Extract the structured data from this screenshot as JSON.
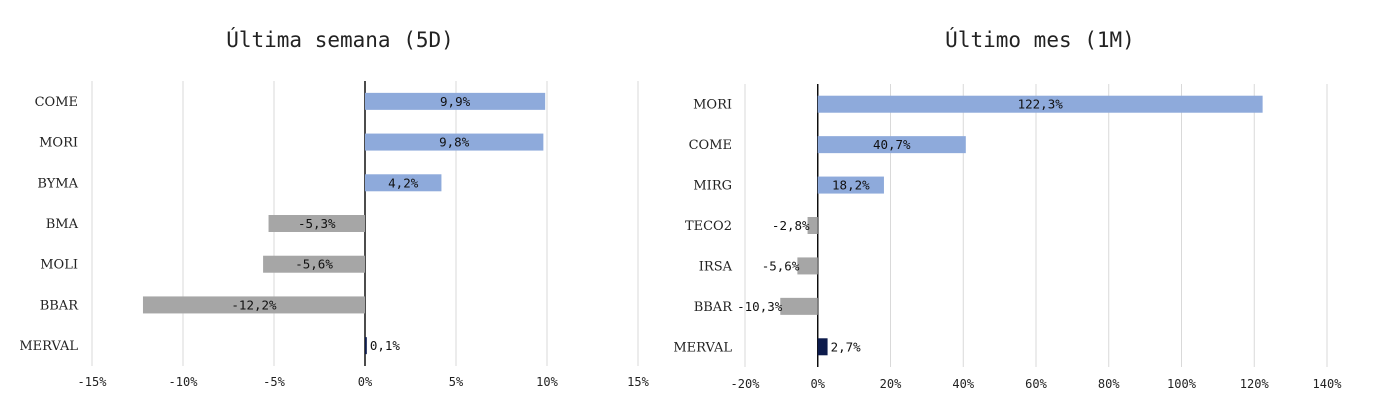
{
  "chart_data": [
    {
      "type": "bar",
      "orientation": "horizontal",
      "title": "Última semana (5D)",
      "categories": [
        "COME",
        "MORI",
        "BYMA",
        "BMA",
        "MOLI",
        "BBAR",
        "MERVAL"
      ],
      "values": [
        9.9,
        9.8,
        4.2,
        -5.3,
        -5.6,
        -12.2,
        0.1
      ],
      "value_labels": [
        "9,9%",
        "9,8%",
        "4,2%",
        "-5,3%",
        "-5,6%",
        "-12,2%",
        "0,1%"
      ],
      "xlim": [
        -15,
        15
      ],
      "x_ticks": [
        -15,
        -10,
        -5,
        0,
        5,
        10,
        15
      ],
      "x_tick_labels": [
        "-15%",
        "-10%",
        "-5%",
        "0%",
        "5%",
        "10%",
        "15%"
      ],
      "grid": true,
      "colors": {
        "positive": "#8eaadb",
        "negative": "#a6a6a6",
        "index": "#0d1b4c"
      }
    },
    {
      "type": "bar",
      "orientation": "horizontal",
      "title": "Último mes (1M)",
      "categories": [
        "MORI",
        "COME",
        "MIRG",
        "TECO2",
        "IRSA",
        "BBAR",
        "MERVAL"
      ],
      "values": [
        122.3,
        40.7,
        18.2,
        -2.8,
        -5.6,
        -10.3,
        2.7
      ],
      "value_labels": [
        "122,3%",
        "40,7%",
        "18,2%",
        "-2,8%",
        "-5,6%",
        "-10,3%",
        "2,7%"
      ],
      "xlim": [
        -20,
        140
      ],
      "x_ticks": [
        -20,
        0,
        20,
        40,
        60,
        80,
        100,
        120,
        140
      ],
      "x_tick_labels": [
        "-20%",
        "0%",
        "20%",
        "40%",
        "60%",
        "80%",
        "100%",
        "120%",
        "140%"
      ],
      "grid": true,
      "colors": {
        "positive": "#8eaadb",
        "negative": "#a6a6a6",
        "index": "#0d1b4c"
      }
    }
  ]
}
